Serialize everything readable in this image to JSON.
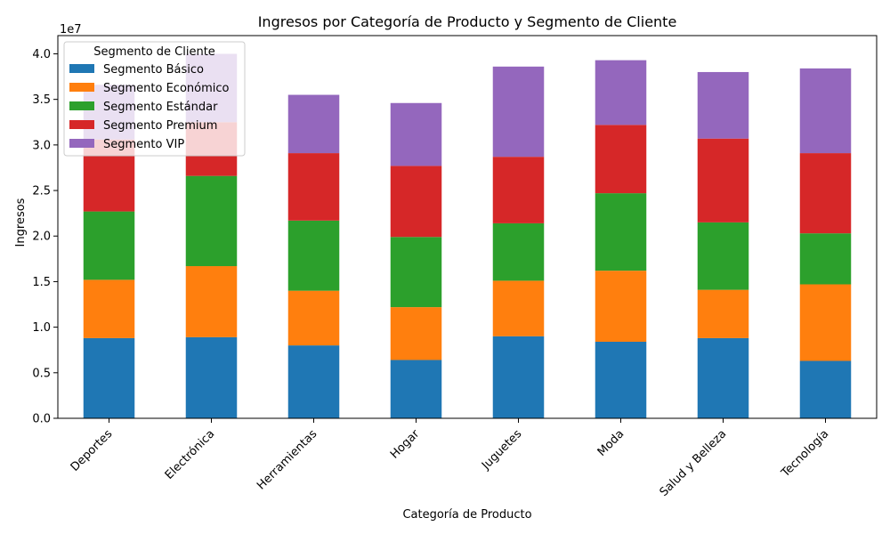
{
  "chart_data": {
    "type": "bar",
    "stacked": true,
    "title": "Ingresos por Categoría de Producto y Segmento de Cliente",
    "xlabel": "Categoría de Producto",
    "ylabel": "Ingresos",
    "y_scale_label": "1e7",
    "ylim": [
      0,
      42000000
    ],
    "yticks": [
      0,
      5000000,
      10000000,
      15000000,
      20000000,
      25000000,
      30000000,
      35000000,
      40000000
    ],
    "ytick_labels": [
      "0.0",
      "0.5",
      "1.0",
      "1.5",
      "2.0",
      "2.5",
      "3.0",
      "3.5",
      "4.0"
    ],
    "grid": false,
    "legend": {
      "title": "Segmento de Cliente",
      "position": "top-left"
    },
    "categories": [
      "Deportes",
      "Electrónica",
      "Herramientas",
      "Hogar",
      "Juguetes",
      "Moda",
      "Salud y Belleza",
      "Tecnología"
    ],
    "series": [
      {
        "name": "Segmento Básico",
        "color": "#1f77b4",
        "values": [
          8800000,
          8900000,
          8000000,
          6400000,
          9000000,
          8400000,
          8800000,
          6300000
        ]
      },
      {
        "name": "Segmento Económico",
        "color": "#ff7f0e",
        "values": [
          6400000,
          7800000,
          6000000,
          5800000,
          6100000,
          7800000,
          5300000,
          8400000
        ]
      },
      {
        "name": "Segmento Estándar",
        "color": "#2ca02c",
        "values": [
          7500000,
          9900000,
          7700000,
          7700000,
          6300000,
          8500000,
          7400000,
          5600000
        ]
      },
      {
        "name": "Segmento Premium",
        "color": "#d62728",
        "values": [
          7900000,
          5900000,
          7400000,
          7800000,
          7300000,
          7500000,
          9200000,
          8800000
        ]
      },
      {
        "name": "Segmento VIP",
        "color": "#9467bd",
        "values": [
          6000000,
          7500000,
          6400000,
          6900000,
          9900000,
          7100000,
          7300000,
          9300000
        ]
      }
    ]
  }
}
